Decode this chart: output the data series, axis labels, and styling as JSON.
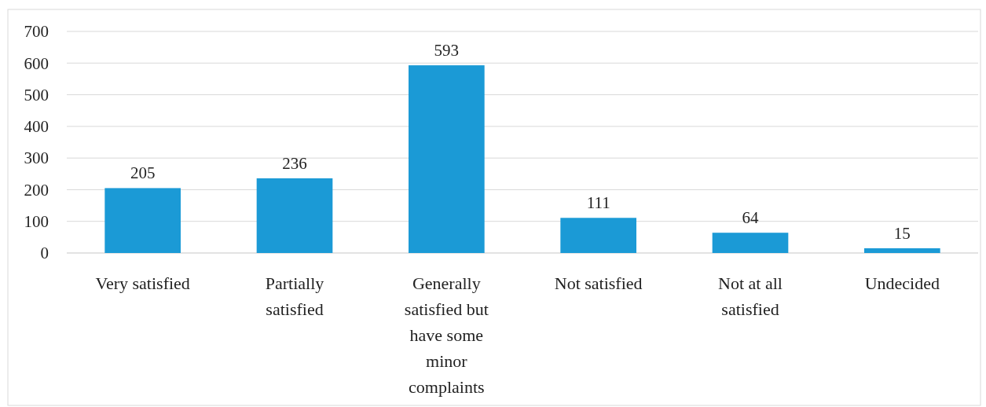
{
  "chart_data": {
    "type": "bar",
    "categories": [
      "Very satisfied",
      "Partially satisfied",
      "Generally satisfied but have some minor complaints",
      "Not satisfied",
      "Not at all satisfied",
      "Undecided"
    ],
    "values": [
      205,
      236,
      593,
      111,
      64,
      15
    ],
    "color": "#1b9ad6",
    "ylim": [
      0,
      700
    ],
    "yticks": [
      0,
      100,
      200,
      300,
      400,
      500,
      600,
      700
    ],
    "grid": "y",
    "data_labels": true
  }
}
